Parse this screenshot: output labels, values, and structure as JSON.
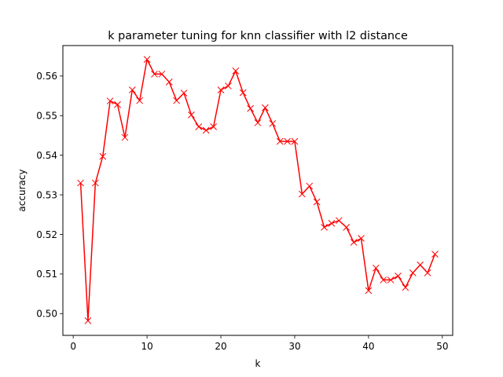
{
  "chart_data": {
    "type": "line",
    "title": "k parameter tuning for knn classifier with l2 distance",
    "xlabel": "k",
    "ylabel": "accuracy",
    "xlim": [
      -1.4,
      51.4
    ],
    "ylim": [
      0.4945,
      0.5677
    ],
    "xticks": [
      0,
      10,
      20,
      30,
      40,
      50
    ],
    "yticks": [
      0.5,
      0.51,
      0.52,
      0.53,
      0.54,
      0.55,
      0.56
    ],
    "ytick_labels": [
      "0.50",
      "0.51",
      "0.52",
      "0.53",
      "0.54",
      "0.55",
      "0.56"
    ],
    "grid": false,
    "marker": "x",
    "color": "#ff0000",
    "series": [
      {
        "x": [
          1,
          2,
          3,
          4,
          5,
          6,
          7,
          8,
          9,
          10,
          11,
          12,
          13,
          14,
          15,
          16,
          17,
          18,
          19,
          20,
          21,
          22,
          23,
          24,
          25,
          26,
          27,
          28,
          29,
          30,
          31,
          32,
          33,
          34,
          35,
          36,
          37,
          38,
          39,
          40,
          41,
          42,
          43,
          44,
          45,
          46,
          47,
          48,
          49
        ],
        "values": [
          0.533,
          0.4982,
          0.533,
          0.5397,
          0.5537,
          0.5528,
          0.5445,
          0.5565,
          0.5538,
          0.5642,
          0.5605,
          0.5605,
          0.5585,
          0.5538,
          0.5557,
          0.5502,
          0.5472,
          0.5463,
          0.5472,
          0.5565,
          0.5575,
          0.5613,
          0.5558,
          0.5518,
          0.5482,
          0.552,
          0.548,
          0.5435,
          0.5435,
          0.5435,
          0.5302,
          0.5322,
          0.5282,
          0.5218,
          0.5228,
          0.5235,
          0.5218,
          0.518,
          0.519,
          0.5058,
          0.5115,
          0.5085,
          0.5085,
          0.5095,
          0.5066,
          0.5103,
          0.5123,
          0.5103,
          0.515
        ]
      }
    ]
  }
}
